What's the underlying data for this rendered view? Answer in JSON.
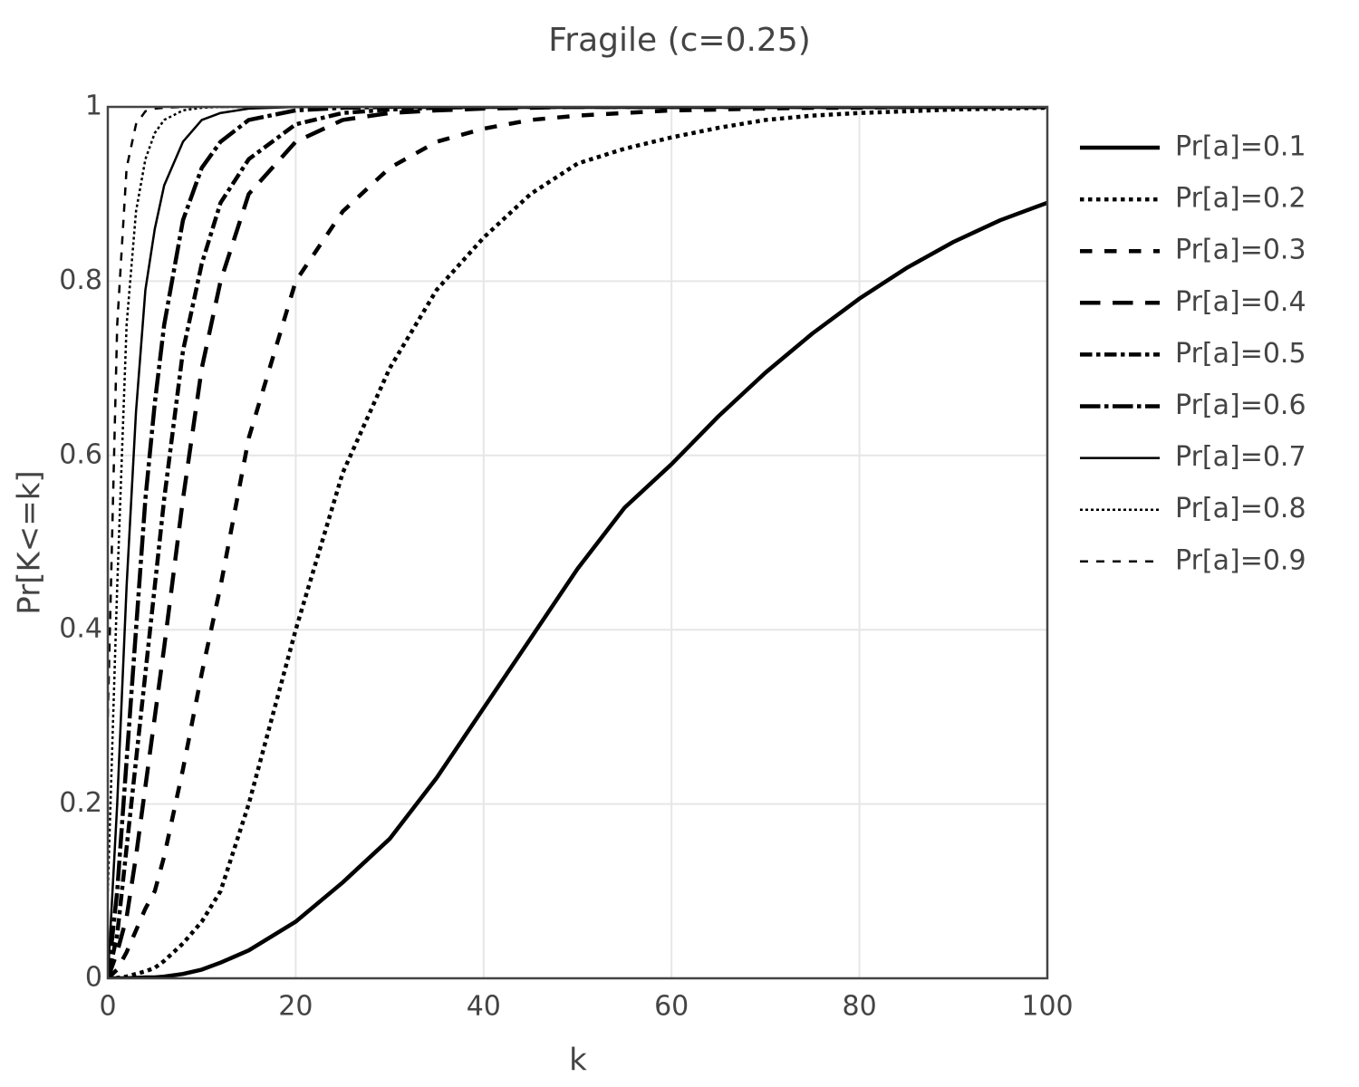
{
  "chart_data": {
    "type": "line",
    "title": "Fragile (c=0.25)",
    "x_label": "k",
    "y_label": "Pr[K<=k]",
    "x": [
      0,
      1,
      2,
      3,
      4,
      5,
      6,
      8,
      10,
      12,
      15,
      20,
      25,
      30,
      35,
      40,
      45,
      50,
      55,
      60,
      65,
      70,
      75,
      80,
      85,
      90,
      95,
      100
    ],
    "series": [
      {
        "name": "Pr[a]=0.1",
        "color": "#000000",
        "dash": "solid",
        "values": [
          0,
          0,
          0,
          0.0005,
          0.001,
          0.001,
          0.002,
          0.005,
          0.01,
          0.018,
          0.032,
          0.065,
          0.11,
          0.16,
          0.23,
          0.31,
          0.39,
          0.47,
          0.54,
          0.59,
          0.645,
          0.695,
          0.74,
          0.78,
          0.815,
          0.845,
          0.87,
          0.89
        ]
      },
      {
        "name": "Pr[a]=0.2",
        "color": "#000000",
        "dash": "dot",
        "values": [
          0,
          0.0005,
          0.002,
          0.005,
          0.008,
          0.012,
          0.02,
          0.04,
          0.065,
          0.1,
          0.2,
          0.4,
          0.58,
          0.7,
          0.79,
          0.85,
          0.9,
          0.935,
          0.952,
          0.965,
          0.976,
          0.985,
          0.99,
          0.993,
          0.995,
          0.997,
          0.998,
          0.999
        ]
      },
      {
        "name": "Pr[a]=0.3",
        "color": "#000000",
        "dash": "dash",
        "values": [
          0,
          0.01,
          0.03,
          0.055,
          0.08,
          0.1,
          0.14,
          0.24,
          0.35,
          0.45,
          0.62,
          0.8,
          0.88,
          0.93,
          0.96,
          0.975,
          0.985,
          0.99,
          0.993,
          0.996,
          0.997,
          0.998,
          0.999,
          0.999,
          1,
          1,
          1,
          1
        ]
      },
      {
        "name": "Pr[a]=0.4",
        "color": "#000000",
        "dash": "longdash",
        "values": [
          0,
          0.03,
          0.07,
          0.14,
          0.22,
          0.3,
          0.38,
          0.55,
          0.7,
          0.8,
          0.9,
          0.96,
          0.985,
          0.993,
          0.996,
          0.998,
          0.999,
          1,
          1,
          1,
          1,
          1,
          1,
          1,
          1,
          1,
          1,
          1
        ]
      },
      {
        "name": "Pr[a]=0.5",
        "color": "#000000",
        "dash": "dashdot",
        "values": [
          0,
          0.05,
          0.15,
          0.25,
          0.35,
          0.45,
          0.55,
          0.72,
          0.82,
          0.89,
          0.94,
          0.98,
          0.993,
          0.997,
          0.999,
          1,
          1,
          1,
          1,
          1,
          1,
          1,
          1,
          1,
          1,
          1,
          1,
          1
        ]
      },
      {
        "name": "Pr[a]=0.6",
        "color": "#000000",
        "dash": "longdashdot",
        "values": [
          0,
          0.1,
          0.25,
          0.4,
          0.55,
          0.66,
          0.75,
          0.87,
          0.93,
          0.96,
          0.985,
          0.996,
          0.999,
          1,
          1,
          1,
          1,
          1,
          1,
          1,
          1,
          1,
          1,
          1,
          1,
          1,
          1,
          1
        ]
      },
      {
        "name": "Pr[a]=0.7",
        "color": "#000000",
        "dash": "solid-thin",
        "values": [
          0,
          0.2,
          0.45,
          0.65,
          0.79,
          0.86,
          0.91,
          0.96,
          0.985,
          0.993,
          0.998,
          1,
          1,
          1,
          1,
          1,
          1,
          1,
          1,
          1,
          1,
          1,
          1,
          1,
          1,
          1,
          1,
          1
        ]
      },
      {
        "name": "Pr[a]=0.8",
        "color": "#000000",
        "dash": "dot-thin",
        "values": [
          0.1,
          0.45,
          0.75,
          0.88,
          0.94,
          0.97,
          0.985,
          0.996,
          0.999,
          1,
          1,
          1,
          1,
          1,
          1,
          1,
          1,
          1,
          1,
          1,
          1,
          1,
          1,
          1,
          1,
          1,
          1,
          1
        ]
      },
      {
        "name": "Pr[a]=0.9",
        "color": "#000000",
        "dash": "dash-thin",
        "values": [
          0.3,
          0.75,
          0.93,
          0.98,
          0.995,
          0.998,
          0.999,
          1,
          1,
          1,
          1,
          1,
          1,
          1,
          1,
          1,
          1,
          1,
          1,
          1,
          1,
          1,
          1,
          1,
          1,
          1,
          1,
          1
        ]
      }
    ],
    "xlim": [
      0,
      100
    ],
    "xticks": [
      0,
      20,
      40,
      60,
      80,
      100
    ],
    "ylim": [
      0,
      1
    ],
    "yticks": [
      0,
      0.2,
      0.4,
      0.6,
      0.8,
      1
    ],
    "grid": true,
    "legend_position": "right"
  }
}
